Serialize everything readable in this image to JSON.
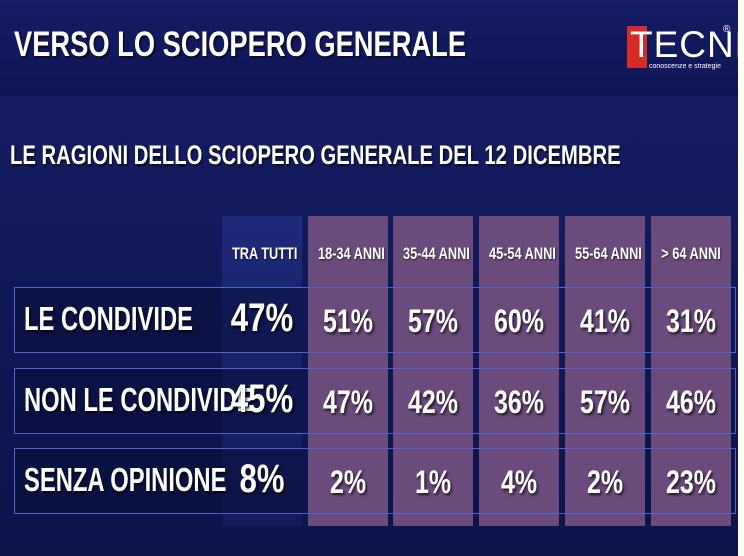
{
  "header": {
    "title": "VERSO LO SCIOPERO GENERALE",
    "logo": {
      "word": "TECNÈ",
      "registered": "®",
      "tagline": "conoscenze e strategie",
      "accent": "#d72b25"
    }
  },
  "subtitle": "LE RAGIONI DELLO SCIOPERO GENERALE DEL 12 DICEMBRE",
  "columns": [
    "TRA TUTTI",
    "18-34 ANNI",
    "35-44 ANNI",
    "45-54 ANNI",
    "55-64 ANNI",
    "> 64 ANNI"
  ],
  "rows": [
    {
      "label": "LE CONDIVIDE",
      "values": [
        "47%",
        "51%",
        "57%",
        "60%",
        "41%",
        "31%"
      ]
    },
    {
      "label": "NON LE CONDIVIDE",
      "values": [
        "45%",
        "47%",
        "42%",
        "36%",
        "57%",
        "46%"
      ]
    },
    {
      "label": "SENZA OPINIONE",
      "values": [
        "8%",
        "2%",
        "1%",
        "4%",
        "2%",
        "23%"
      ]
    }
  ],
  "colors": {
    "background": "#111a5a",
    "age_column": "#6b4a7c",
    "row_border": "#4d65c9"
  }
}
